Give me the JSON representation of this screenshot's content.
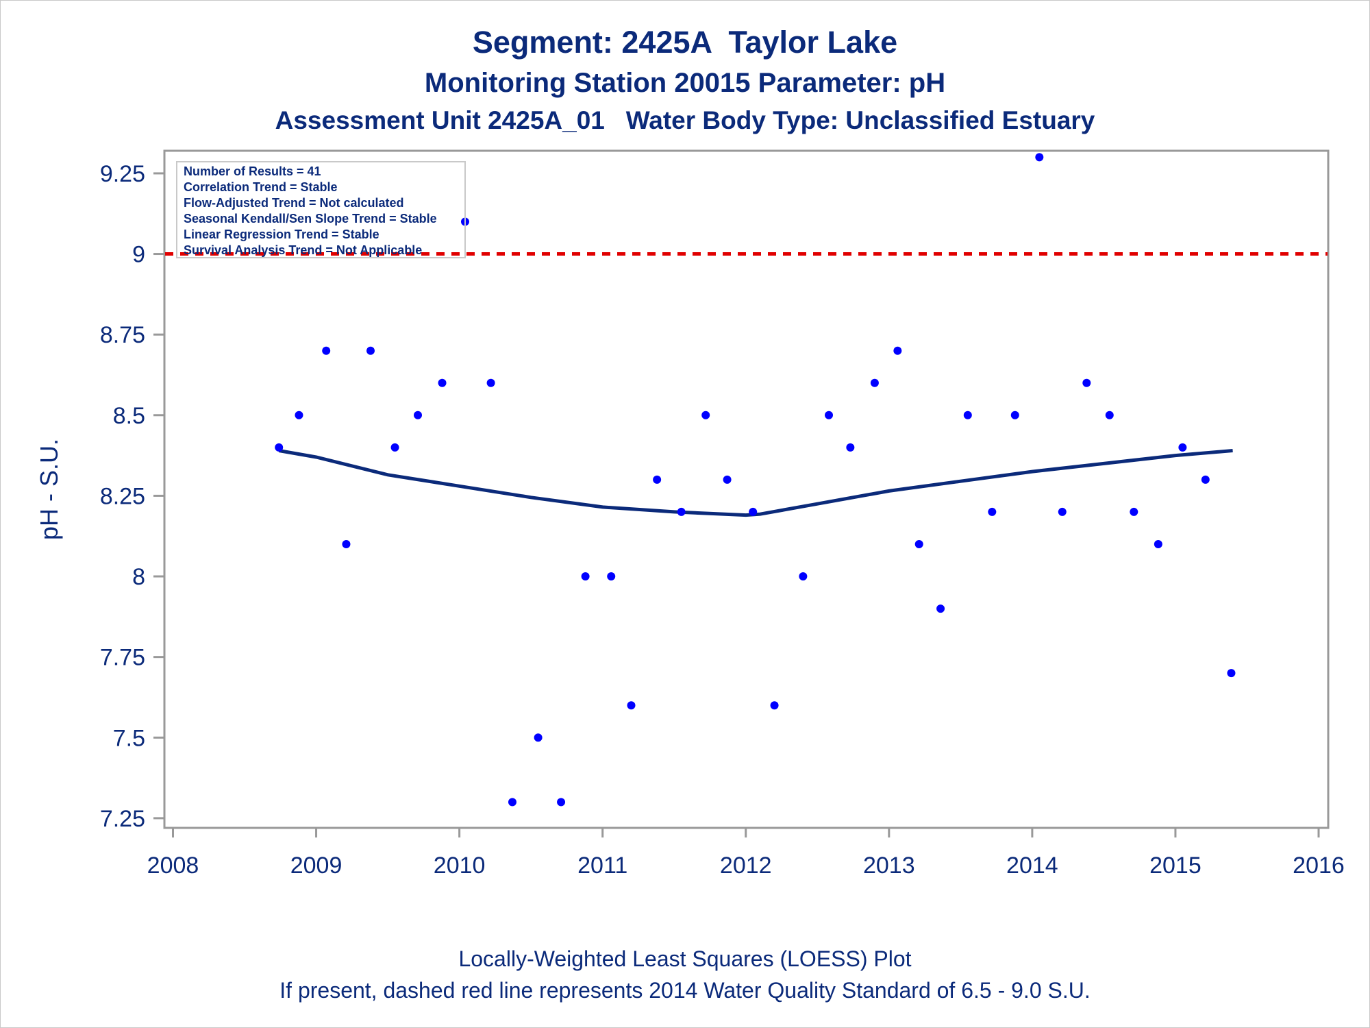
{
  "titles": {
    "line1": "Segment: 2425A  Taylor Lake",
    "line2": "Monitoring Station 20015 Parameter: pH",
    "line3": "Assessment Unit 2425A_01   Water Body Type: Unclassified Estuary"
  },
  "footnotes": {
    "line1": "Locally-Weighted Least Squares (LOESS) Plot",
    "line2": "If present, dashed red line represents 2014 Water Quality Standard of 6.5 - 9.0 S.U."
  },
  "stats_box": [
    "Number of Results = 41",
    "Correlation Trend = Stable",
    "Flow-Adjusted Trend = Not calculated",
    "Seasonal Kendall/Sen Slope Trend = Stable",
    "Linear Regression Trend = Stable",
    "Survival Analysis Trend = Not Applicable"
  ],
  "colors": {
    "text": "#0b2a7a",
    "points": "#0000ff",
    "loess": "#0b2a7a",
    "standard_line": "#e00000",
    "frame": "#999999"
  },
  "chart_data": {
    "type": "scatter",
    "xlabel": "",
    "ylabel": "pH - S.U.",
    "xlim": [
      2008,
      2016
    ],
    "ylim": [
      7.22,
      9.32
    ],
    "x_ticks": [
      {
        "value": 2008,
        "label": "2008"
      },
      {
        "value": 2009,
        "label": "2009"
      },
      {
        "value": 2010,
        "label": "2010"
      },
      {
        "value": 2011,
        "label": "2011"
      },
      {
        "value": 2012,
        "label": "2012"
      },
      {
        "value": 2013,
        "label": "2013"
      },
      {
        "value": 2014,
        "label": "2014"
      },
      {
        "value": 2015,
        "label": "2015"
      },
      {
        "value": 2016,
        "label": "2016"
      }
    ],
    "y_ticks": [
      {
        "value": 7.25,
        "label": "7.25"
      },
      {
        "value": 7.5,
        "label": "7.5"
      },
      {
        "value": 7.75,
        "label": "7.75"
      },
      {
        "value": 8,
        "label": "8"
      },
      {
        "value": 8.25,
        "label": "8.25"
      },
      {
        "value": 8.5,
        "label": "8.5"
      },
      {
        "value": 8.75,
        "label": "8.75"
      },
      {
        "value": 9,
        "label": "9"
      },
      {
        "value": 9.25,
        "label": "9.25"
      }
    ],
    "reference_line": {
      "y": 9.0,
      "style": "dashed"
    },
    "points": [
      {
        "x": 2008.74,
        "y": 8.4
      },
      {
        "x": 2008.88,
        "y": 8.5
      },
      {
        "x": 2009.07,
        "y": 8.7
      },
      {
        "x": 2009.21,
        "y": 8.1
      },
      {
        "x": 2009.38,
        "y": 8.7
      },
      {
        "x": 2009.55,
        "y": 8.4
      },
      {
        "x": 2009.71,
        "y": 8.5
      },
      {
        "x": 2009.88,
        "y": 8.6
      },
      {
        "x": 2010.04,
        "y": 9.1
      },
      {
        "x": 2010.22,
        "y": 8.6
      },
      {
        "x": 2010.37,
        "y": 7.3
      },
      {
        "x": 2010.55,
        "y": 7.5
      },
      {
        "x": 2010.71,
        "y": 7.3
      },
      {
        "x": 2010.88,
        "y": 8.0
      },
      {
        "x": 2011.06,
        "y": 8.0
      },
      {
        "x": 2011.2,
        "y": 7.6
      },
      {
        "x": 2011.38,
        "y": 8.3
      },
      {
        "x": 2011.55,
        "y": 8.2
      },
      {
        "x": 2011.72,
        "y": 8.5
      },
      {
        "x": 2011.87,
        "y": 8.3
      },
      {
        "x": 2012.05,
        "y": 8.2
      },
      {
        "x": 2012.2,
        "y": 7.6
      },
      {
        "x": 2012.4,
        "y": 8.0
      },
      {
        "x": 2012.58,
        "y": 8.5
      },
      {
        "x": 2012.73,
        "y": 8.4
      },
      {
        "x": 2012.9,
        "y": 8.6
      },
      {
        "x": 2013.06,
        "y": 8.7
      },
      {
        "x": 2013.21,
        "y": 8.1
      },
      {
        "x": 2013.36,
        "y": 7.9
      },
      {
        "x": 2013.55,
        "y": 8.5
      },
      {
        "x": 2013.72,
        "y": 8.2
      },
      {
        "x": 2013.88,
        "y": 8.5
      },
      {
        "x": 2014.05,
        "y": 9.3
      },
      {
        "x": 2014.21,
        "y": 8.2
      },
      {
        "x": 2014.38,
        "y": 8.6
      },
      {
        "x": 2014.54,
        "y": 8.5
      },
      {
        "x": 2014.71,
        "y": 8.2
      },
      {
        "x": 2014.88,
        "y": 8.1
      },
      {
        "x": 2015.05,
        "y": 8.4
      },
      {
        "x": 2015.21,
        "y": 8.3
      },
      {
        "x": 2015.39,
        "y": 7.7
      }
    ],
    "loess": [
      {
        "x": 2008.74,
        "y": 8.39
      },
      {
        "x": 2009.0,
        "y": 8.37
      },
      {
        "x": 2009.5,
        "y": 8.315
      },
      {
        "x": 2010.0,
        "y": 8.28
      },
      {
        "x": 2010.5,
        "y": 8.245
      },
      {
        "x": 2011.0,
        "y": 8.215
      },
      {
        "x": 2011.5,
        "y": 8.2
      },
      {
        "x": 2012.0,
        "y": 8.19
      },
      {
        "x": 2012.1,
        "y": 8.193
      },
      {
        "x": 2012.5,
        "y": 8.225
      },
      {
        "x": 2013.0,
        "y": 8.265
      },
      {
        "x": 2013.5,
        "y": 8.295
      },
      {
        "x": 2014.0,
        "y": 8.325
      },
      {
        "x": 2014.5,
        "y": 8.35
      },
      {
        "x": 2015.0,
        "y": 8.375
      },
      {
        "x": 2015.4,
        "y": 8.39
      }
    ]
  }
}
